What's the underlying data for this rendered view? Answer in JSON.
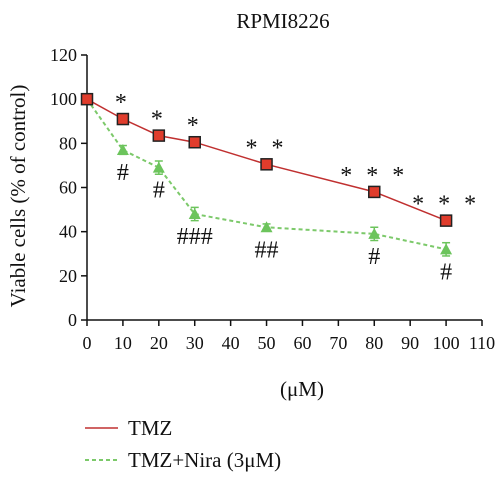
{
  "chart_data": {
    "type": "line",
    "title": "RPMI8226",
    "xlabel": "(μM)",
    "ylabel": "Viable cells (% of control)",
    "xlim": [
      0,
      110
    ],
    "ylim": [
      0,
      120
    ],
    "xticks": [
      0,
      10,
      20,
      30,
      40,
      50,
      60,
      70,
      80,
      90,
      100,
      110
    ],
    "yticks": [
      0,
      20,
      40,
      60,
      80,
      100,
      120
    ],
    "grid": false,
    "legend_position": "bottom-left",
    "series": [
      {
        "name": "TMZ",
        "style": "solid",
        "marker": "square",
        "color": "#c03030",
        "marker_color": "#e03c2c",
        "x": [
          0,
          10,
          20,
          30,
          50,
          80,
          100
        ],
        "y": [
          100,
          91,
          83.5,
          80.5,
          70.5,
          58,
          45
        ],
        "error": [
          0,
          1,
          1,
          1,
          1,
          1.5,
          1
        ],
        "annotations": [
          "",
          "*",
          "*",
          "*",
          "**",
          "***",
          "***"
        ]
      },
      {
        "name": "TMZ+Nira (3μM)",
        "style": "dashed",
        "marker": "triangle",
        "color": "#7cc96a",
        "marker_color": "#6cc45c",
        "x": [
          0,
          10,
          20,
          30,
          50,
          80,
          100
        ],
        "y": [
          100,
          77,
          69,
          48,
          42,
          39,
          32
        ],
        "error": [
          0,
          2,
          3,
          3,
          1.5,
          3,
          3
        ],
        "annotations": [
          "",
          "#",
          "#",
          "###",
          "##",
          "#",
          "#"
        ]
      }
    ]
  }
}
